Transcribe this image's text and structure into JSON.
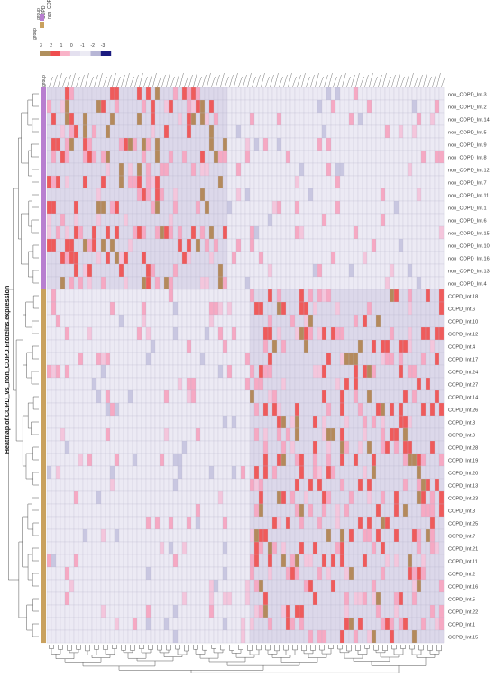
{
  "chart_data": {
    "type": "heatmap",
    "title": "Heatmap of COPD_vs_non_COPD Proteins expression",
    "annotation_label": "group",
    "group_legend": [
      {
        "label": "COPD",
        "color": "#c9a15e"
      },
      {
        "label": "non_COPD",
        "color": "#b87fd0"
      }
    ],
    "color_scale": {
      "ticks": [
        3,
        2,
        1,
        0,
        -1,
        -2,
        -3
      ],
      "colors": [
        "#b08f5d",
        "#ef4e4e",
        "#f9b3c8",
        "#e4e0ef",
        "#ecebf4",
        "#b7b6d6",
        "#1b1b80"
      ]
    },
    "rows": [
      {
        "label": "non_COPD_Int.3",
        "group": "non_COPD"
      },
      {
        "label": "non_COPD_Int.2",
        "group": "non_COPD"
      },
      {
        "label": "non_COPD_Int.14",
        "group": "non_COPD"
      },
      {
        "label": "non_COPD_Int.5",
        "group": "non_COPD"
      },
      {
        "label": "non_COPD_Int.9",
        "group": "non_COPD"
      },
      {
        "label": "non_COPD_Int.8",
        "group": "non_COPD"
      },
      {
        "label": "non_COPD_Int.12",
        "group": "non_COPD"
      },
      {
        "label": "non_COPD_Int.7",
        "group": "non_COPD"
      },
      {
        "label": "non_COPD_Int.11",
        "group": "non_COPD"
      },
      {
        "label": "non_COPD_Int.1",
        "group": "non_COPD"
      },
      {
        "label": "non_COPD_Int.6",
        "group": "non_COPD"
      },
      {
        "label": "non_COPD_Int.15",
        "group": "non_COPD"
      },
      {
        "label": "non_COPD_Int.10",
        "group": "non_COPD"
      },
      {
        "label": "non_COPD_Int.16",
        "group": "non_COPD"
      },
      {
        "label": "non_COPD_Int.13",
        "group": "non_COPD"
      },
      {
        "label": "non_COPD_Int.4",
        "group": "non_COPD"
      },
      {
        "label": "COPD_Int.18",
        "group": "COPD"
      },
      {
        "label": "COPD_Int.6",
        "group": "COPD"
      },
      {
        "label": "COPD_Int.10",
        "group": "COPD"
      },
      {
        "label": "COPD_Int.12",
        "group": "COPD"
      },
      {
        "label": "COPD_Int.4",
        "group": "COPD"
      },
      {
        "label": "COPD_Int.17",
        "group": "COPD"
      },
      {
        "label": "COPD_Int.24",
        "group": "COPD"
      },
      {
        "label": "COPD_Int.27",
        "group": "COPD"
      },
      {
        "label": "COPD_Int.14",
        "group": "COPD"
      },
      {
        "label": "COPD_Int.26",
        "group": "COPD"
      },
      {
        "label": "COPD_Int.8",
        "group": "COPD"
      },
      {
        "label": "COPD_Int.9",
        "group": "COPD"
      },
      {
        "label": "COPD_Int.28",
        "group": "COPD"
      },
      {
        "label": "COPD_Int.19",
        "group": "COPD"
      },
      {
        "label": "COPD_Int.20",
        "group": "COPD"
      },
      {
        "label": "COPD_Int.13",
        "group": "COPD"
      },
      {
        "label": "COPD_Int.23",
        "group": "COPD"
      },
      {
        "label": "COPD_Int.3",
        "group": "COPD"
      },
      {
        "label": "COPD_Int.25",
        "group": "COPD"
      },
      {
        "label": "COPD_Int.7",
        "group": "COPD"
      },
      {
        "label": "COPD_Int.21",
        "group": "COPD"
      },
      {
        "label": "COPD_Int.11",
        "group": "COPD"
      },
      {
        "label": "COPD_Int.2",
        "group": "COPD"
      },
      {
        "label": "COPD_Int.16",
        "group": "COPD"
      },
      {
        "label": "COPD_Int.5",
        "group": "COPD"
      },
      {
        "label": "COPD_Int.22",
        "group": "COPD"
      },
      {
        "label": "COPD_Int.1",
        "group": "COPD"
      },
      {
        "label": "COPD_Int.15",
        "group": "COPD"
      }
    ],
    "column_count": 88,
    "column_labels_legible": false,
    "values_source": "per-cell values not legible at this resolution; hot (red/pink/brown) cells cluster in non_COPD rows x left columns and COPD rows x right columns",
    "legend_placement": "top-left",
    "row_labels_position": "right",
    "row_dendrogram": "left",
    "column_dendrogram": "bottom"
  }
}
